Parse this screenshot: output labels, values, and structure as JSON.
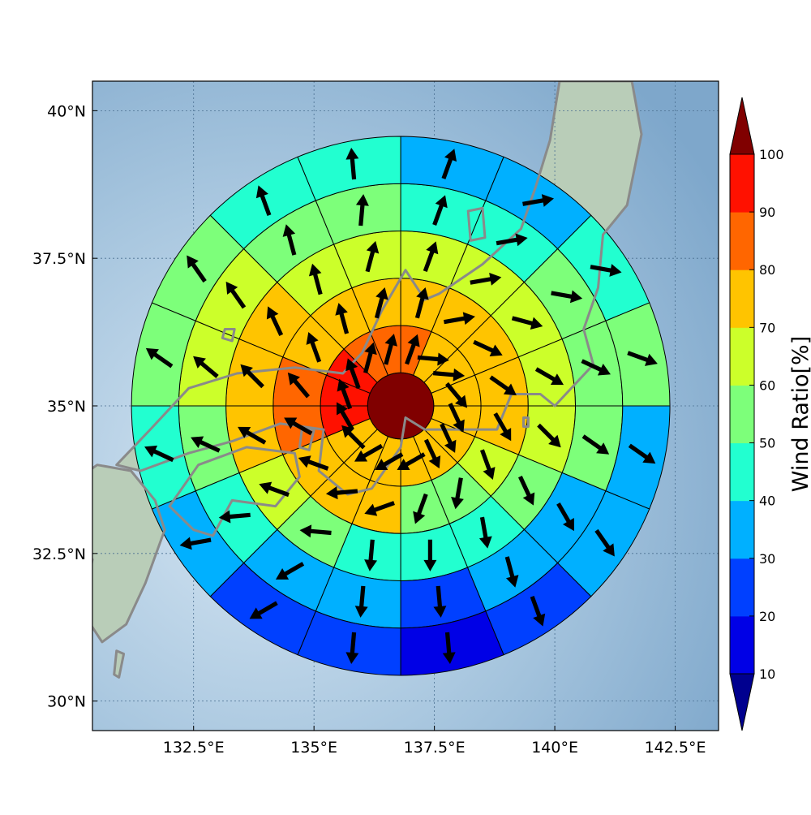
{
  "colors": {
    "ocean_light": "#d6e6f3",
    "ocean_mid": "#a6c5de",
    "ocean_deep": "#7ea7cb",
    "land": "#b9cdb8",
    "coast": "#8a8a8a",
    "grid": "#4a6f90",
    "arrow": "#000000",
    "center": "#7a0000"
  },
  "map": {
    "lon_range": [
      130.4,
      143.4
    ],
    "lat_range": [
      29.5,
      40.5
    ],
    "grid": true,
    "lon_ticks": [
      {
        "value": 132.5,
        "label": "132.5°E"
      },
      {
        "value": 135.0,
        "label": "135°E"
      },
      {
        "value": 137.5,
        "label": "137.5°E"
      },
      {
        "value": 140.0,
        "label": "140°E"
      },
      {
        "value": 142.5,
        "label": "142.5°E"
      }
    ],
    "lat_ticks": [
      {
        "value": 30.0,
        "label": "30°N"
      },
      {
        "value": 32.5,
        "label": "32.5°N"
      },
      {
        "value": 35.0,
        "label": "35°N"
      },
      {
        "value": 37.5,
        "label": "37.5°N"
      },
      {
        "value": 40.0,
        "label": "40°N"
      }
    ]
  },
  "chart_data": {
    "type": "heatmap",
    "description_grid": "polar sectors: 16 sectors of 22.5° clockwise from north",
    "center": {
      "lon": 136.8,
      "lat": 35.0,
      "value": 100
    },
    "ring_count": 5,
    "sectors": 16,
    "rings": [
      {
        "values": [
          80,
          70,
          70,
          70,
          70,
          70,
          70,
          70,
          70,
          70,
          70,
          90,
          90,
          90,
          80,
          80
        ],
        "arrow_dir": [
          20,
          95,
          95,
          140,
          155,
          155,
          155,
          240,
          240,
          240,
          315,
          330,
          340,
          340,
          15,
          15
        ]
      },
      {
        "values": [
          70,
          70,
          70,
          70,
          70,
          60,
          50,
          50,
          70,
          70,
          70,
          80,
          80,
          70,
          70,
          70
        ],
        "arrow_dir": [
          15,
          80,
          115,
          125,
          150,
          160,
          190,
          200,
          250,
          265,
          290,
          300,
          320,
          340,
          345,
          15
        ]
      },
      {
        "values": [
          60,
          60,
          60,
          60,
          60,
          50,
          40,
          40,
          40,
          50,
          60,
          70,
          70,
          70,
          60,
          60
        ],
        "arrow_dir": [
          20,
          80,
          105,
          120,
          135,
          155,
          170,
          180,
          185,
          275,
          290,
          300,
          315,
          335,
          345,
          15
        ]
      },
      {
        "values": [
          40,
          40,
          50,
          50,
          50,
          30,
          30,
          20,
          30,
          30,
          40,
          50,
          60,
          60,
          50,
          50
        ],
        "arrow_dir": [
          20,
          80,
          100,
          115,
          125,
          150,
          165,
          175,
          185,
          240,
          265,
          295,
          310,
          325,
          345,
          5
        ]
      },
      {
        "values": [
          30,
          30,
          40,
          50,
          30,
          30,
          20,
          10,
          20,
          20,
          30,
          40,
          50,
          50,
          40,
          40
        ],
        "arrow_dir": [
          20,
          80,
          100,
          110,
          125,
          145,
          160,
          175,
          185,
          240,
          260,
          295,
          305,
          325,
          340,
          355
        ]
      }
    ],
    "colorbar": {
      "title": "Wind Ratio[%]",
      "levels": [
        0,
        10,
        20,
        30,
        40,
        50,
        60,
        70,
        80,
        90,
        100,
        110
      ],
      "tick_labels": [
        "10",
        "20",
        "30",
        "40",
        "50",
        "60",
        "70",
        "80",
        "90",
        "100"
      ],
      "colors": [
        "#00008f",
        "#0000e6",
        "#0040ff",
        "#00b0ff",
        "#22ffd0",
        "#7dff7a",
        "#ccff2a",
        "#ffc400",
        "#ff6600",
        "#ff1100",
        "#800000"
      ],
      "extend": "both"
    }
  }
}
